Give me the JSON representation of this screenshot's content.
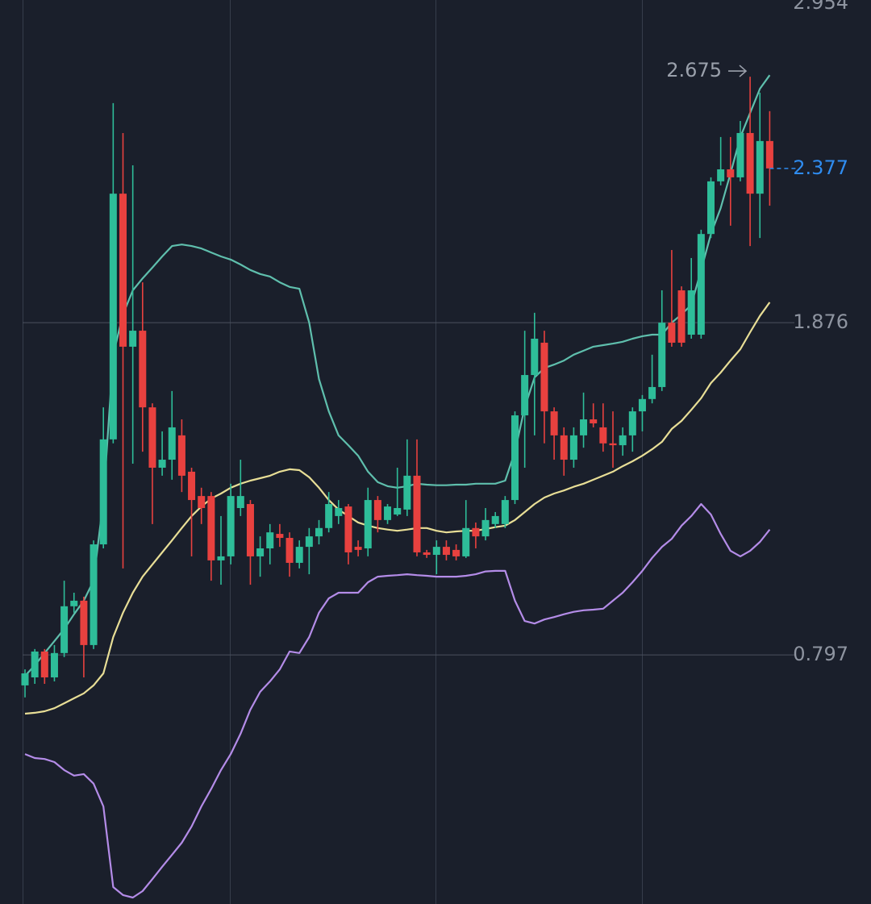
{
  "chart_data": {
    "type": "candlestick",
    "ylim": [
      -0.012,
      2.924
    ],
    "yticks": [
      2.954,
      1.876,
      0.797
    ],
    "grid": true,
    "up_color": "#2ebd99",
    "down_color": "#e8413f",
    "high_label": 2.675,
    "last_price": 2.377,
    "last_price_color": "#2f8cf0",
    "ohlc": [
      [
        0.698,
        0.75,
        0.659,
        0.737
      ],
      [
        0.724,
        0.816,
        0.703,
        0.808
      ],
      [
        0.808,
        0.816,
        0.703,
        0.724
      ],
      [
        0.724,
        0.829,
        0.711,
        0.803
      ],
      [
        0.803,
        1.038,
        0.79,
        0.955
      ],
      [
        0.955,
        0.999,
        0.934,
        0.973
      ],
      [
        0.973,
        0.986,
        0.724,
        0.829
      ],
      [
        0.829,
        1.169,
        0.816,
        1.156
      ],
      [
        1.156,
        1.601,
        1.143,
        1.497
      ],
      [
        1.497,
        2.589,
        1.484,
        2.295
      ],
      [
        2.295,
        2.492,
        1.078,
        1.798
      ],
      [
        1.798,
        2.387,
        1.418,
        1.85
      ],
      [
        1.85,
        2.007,
        1.457,
        1.601
      ],
      [
        1.601,
        1.614,
        1.222,
        1.405
      ],
      [
        1.405,
        1.523,
        1.379,
        1.431
      ],
      [
        1.431,
        1.654,
        1.366,
        1.536
      ],
      [
        1.51,
        1.562,
        1.326,
        1.379
      ],
      [
        1.392,
        1.405,
        1.117,
        1.3
      ],
      [
        1.313,
        1.34,
        1.222,
        1.274
      ],
      [
        1.313,
        1.326,
        1.038,
        1.104
      ],
      [
        1.104,
        1.248,
        1.025,
        1.117
      ],
      [
        1.117,
        1.353,
        1.091,
        1.313
      ],
      [
        1.274,
        1.431,
        1.248,
        1.313
      ],
      [
        1.287,
        1.3,
        1.025,
        1.117
      ],
      [
        1.117,
        1.182,
        1.051,
        1.143
      ],
      [
        1.143,
        1.222,
        1.091,
        1.195
      ],
      [
        1.19,
        1.222,
        1.148,
        1.177
      ],
      [
        1.177,
        1.195,
        1.051,
        1.096
      ],
      [
        1.096,
        1.169,
        1.078,
        1.148
      ],
      [
        1.148,
        1.209,
        1.059,
        1.182
      ],
      [
        1.182,
        1.235,
        1.156,
        1.209
      ],
      [
        1.209,
        1.326,
        1.195,
        1.287
      ],
      [
        1.248,
        1.3,
        1.222,
        1.274
      ],
      [
        1.279,
        1.287,
        1.091,
        1.13
      ],
      [
        1.148,
        1.169,
        1.117,
        1.138
      ],
      [
        1.143,
        1.34,
        1.117,
        1.3
      ],
      [
        1.3,
        1.313,
        1.195,
        1.235
      ],
      [
        1.235,
        1.287,
        1.222,
        1.279
      ],
      [
        1.253,
        1.405,
        1.248,
        1.274
      ],
      [
        1.269,
        1.497,
        1.248,
        1.379
      ],
      [
        1.379,
        1.497,
        1.117,
        1.13
      ],
      [
        1.13,
        1.138,
        1.112,
        1.122
      ],
      [
        1.122,
        1.169,
        1.059,
        1.148
      ],
      [
        1.148,
        1.169,
        1.104,
        1.122
      ],
      [
        1.138,
        1.156,
        1.104,
        1.117
      ],
      [
        1.117,
        1.3,
        1.112,
        1.209
      ],
      [
        1.209,
        1.227,
        1.143,
        1.182
      ],
      [
        1.182,
        1.274,
        1.169,
        1.235
      ],
      [
        1.222,
        1.261,
        1.209,
        1.248
      ],
      [
        1.222,
        1.313,
        1.209,
        1.3
      ],
      [
        1.3,
        1.588,
        1.287,
        1.575
      ],
      [
        1.575,
        1.85,
        1.405,
        1.706
      ],
      [
        1.706,
        1.908,
        1.51,
        1.824
      ],
      [
        1.811,
        1.85,
        1.484,
        1.588
      ],
      [
        1.588,
        1.601,
        1.431,
        1.51
      ],
      [
        1.51,
        1.536,
        1.379,
        1.431
      ],
      [
        1.431,
        1.536,
        1.405,
        1.51
      ],
      [
        1.51,
        1.649,
        1.47,
        1.562
      ],
      [
        1.562,
        1.614,
        1.536,
        1.549
      ],
      [
        1.536,
        1.614,
        1.457,
        1.484
      ],
      [
        1.484,
        1.588,
        1.405,
        1.478
      ],
      [
        1.478,
        1.536,
        1.444,
        1.51
      ],
      [
        1.51,
        1.601,
        1.457,
        1.588
      ],
      [
        1.588,
        1.641,
        1.523,
        1.628
      ],
      [
        1.628,
        1.772,
        1.614,
        1.667
      ],
      [
        1.667,
        1.981,
        1.654,
        1.876
      ],
      [
        1.876,
        2.112,
        1.798,
        1.811
      ],
      [
        1.981,
        1.994,
        1.798,
        1.811
      ],
      [
        1.837,
        2.086,
        1.824,
        1.981
      ],
      [
        1.837,
        2.178,
        1.824,
        2.164
      ],
      [
        2.164,
        2.348,
        2.151,
        2.335
      ],
      [
        2.335,
        2.479,
        2.322,
        2.374
      ],
      [
        2.374,
        2.479,
        2.191,
        2.348
      ],
      [
        2.348,
        2.531,
        2.335,
        2.492
      ],
      [
        2.492,
        2.675,
        2.125,
        2.295
      ],
      [
        2.295,
        2.623,
        2.151,
        2.466
      ],
      [
        2.466,
        2.563,
        2.256,
        2.377
      ]
    ],
    "indicators": [
      {
        "color": "#5fbfad",
        "values": [
          0.729,
          0.763,
          0.803,
          0.842,
          0.881,
          0.929,
          0.973,
          1.038,
          1.3,
          1.772,
          1.903,
          1.981,
          2.02,
          2.055,
          2.091,
          2.125,
          2.13,
          2.125,
          2.117,
          2.104,
          2.091,
          2.081,
          2.065,
          2.047,
          2.034,
          2.026,
          2.007,
          1.992,
          1.986,
          1.876,
          1.693,
          1.588,
          1.51,
          1.478,
          1.444,
          1.392,
          1.358,
          1.345,
          1.34,
          1.345,
          1.353,
          1.35,
          1.348,
          1.348,
          1.35,
          1.35,
          1.353,
          1.353,
          1.353,
          1.363,
          1.457,
          1.601,
          1.698,
          1.729,
          1.74,
          1.753,
          1.772,
          1.785,
          1.798,
          1.803,
          1.808,
          1.814,
          1.824,
          1.832,
          1.837,
          1.837,
          1.876,
          1.903,
          1.934,
          2.047,
          2.164,
          2.248,
          2.361,
          2.479,
          2.557,
          2.636,
          2.68
        ]
      },
      {
        "color": "#e8de96",
        "values": [
          0.606,
          0.609,
          0.614,
          0.624,
          0.64,
          0.656,
          0.672,
          0.698,
          0.737,
          0.855,
          0.934,
          0.999,
          1.051,
          1.091,
          1.13,
          1.169,
          1.209,
          1.248,
          1.279,
          1.305,
          1.321,
          1.34,
          1.353,
          1.363,
          1.371,
          1.379,
          1.392,
          1.4,
          1.397,
          1.374,
          1.34,
          1.3,
          1.269,
          1.248,
          1.227,
          1.217,
          1.209,
          1.204,
          1.2,
          1.204,
          1.209,
          1.209,
          1.2,
          1.195,
          1.198,
          1.2,
          1.2,
          1.206,
          1.212,
          1.217,
          1.235,
          1.261,
          1.287,
          1.308,
          1.321,
          1.331,
          1.343,
          1.353,
          1.366,
          1.379,
          1.392,
          1.41,
          1.426,
          1.444,
          1.465,
          1.489,
          1.531,
          1.557,
          1.593,
          1.631,
          1.68,
          1.714,
          1.753,
          1.79,
          1.845,
          1.898,
          1.942
        ]
      },
      {
        "color": "#b48ce8",
        "values": [
          0.475,
          0.462,
          0.459,
          0.449,
          0.423,
          0.405,
          0.41,
          0.379,
          0.305,
          0.043,
          0.017,
          0.009,
          0.03,
          0.069,
          0.109,
          0.148,
          0.187,
          0.24,
          0.305,
          0.362,
          0.423,
          0.475,
          0.541,
          0.619,
          0.677,
          0.711,
          0.75,
          0.808,
          0.803,
          0.855,
          0.934,
          0.981,
          0.999,
          0.999,
          0.999,
          1.033,
          1.051,
          1.054,
          1.056,
          1.059,
          1.056,
          1.054,
          1.051,
          1.051,
          1.051,
          1.054,
          1.059,
          1.068,
          1.07,
          1.07,
          0.973,
          0.907,
          0.899,
          0.912,
          0.92,
          0.929,
          0.937,
          0.942,
          0.944,
          0.947,
          0.973,
          0.999,
          1.033,
          1.07,
          1.112,
          1.148,
          1.174,
          1.217,
          1.248,
          1.287,
          1.253,
          1.19,
          1.135,
          1.117,
          1.135,
          1.164,
          1.204
        ]
      }
    ]
  }
}
